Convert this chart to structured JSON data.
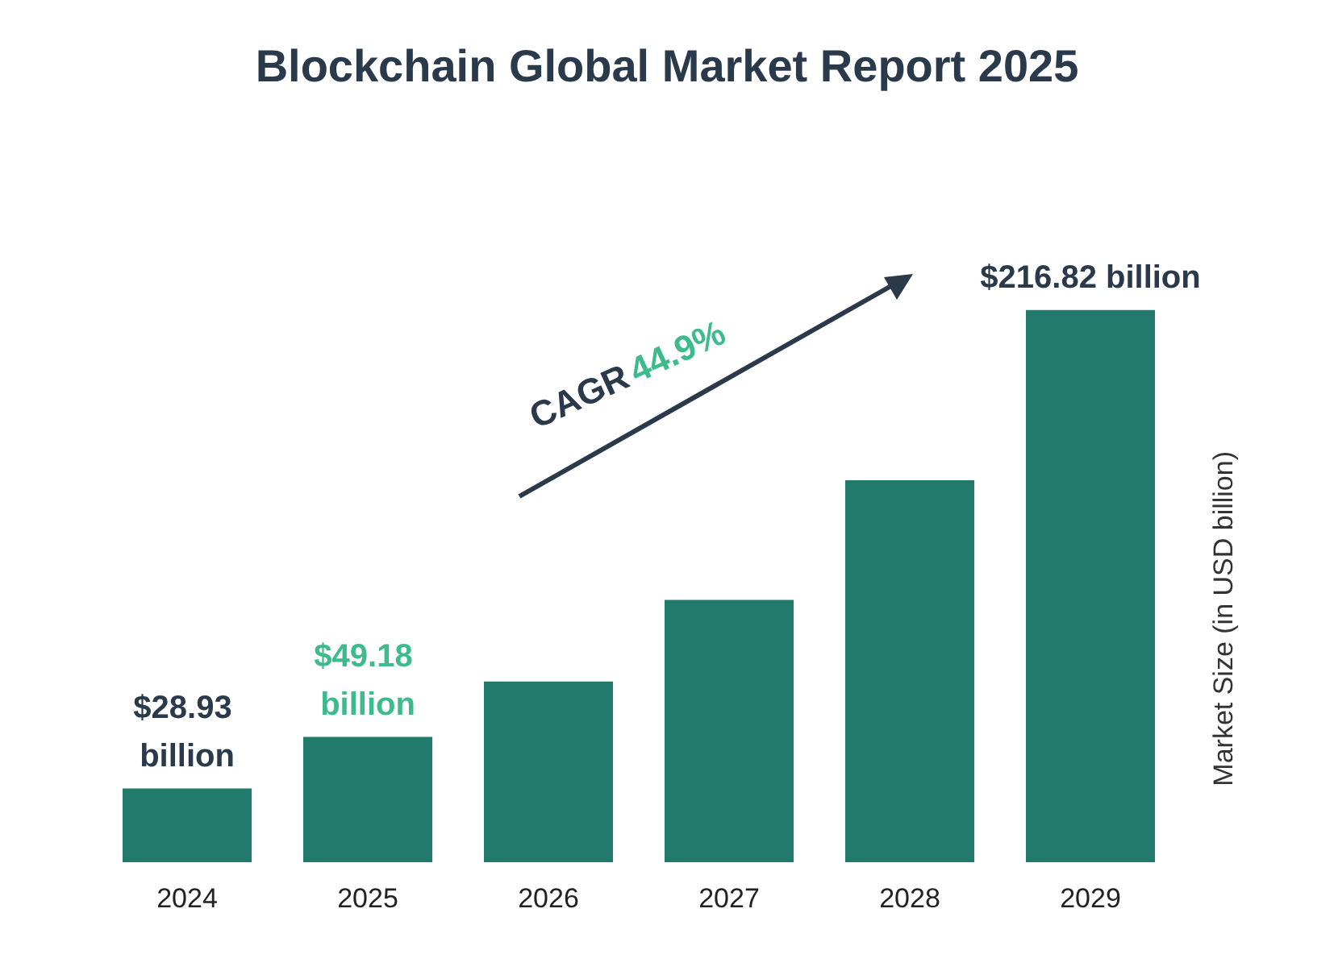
{
  "chart_data": {
    "type": "bar",
    "title": "Blockchain Global Market Report 2025",
    "ylabel": "Market Size (in USD billion)",
    "categories": [
      "2024",
      "2025",
      "2026",
      "2027",
      "2028",
      "2029"
    ],
    "values": [
      28.93,
      49.18,
      71,
      103,
      150,
      216.82
    ],
    "color": "#217a6b",
    "value_labels": [
      "$28.93 billion",
      "$49.18 billion",
      null,
      null,
      null,
      "$216.82 billion"
    ],
    "annotations": [
      "CAGR 44.9%"
    ]
  }
}
